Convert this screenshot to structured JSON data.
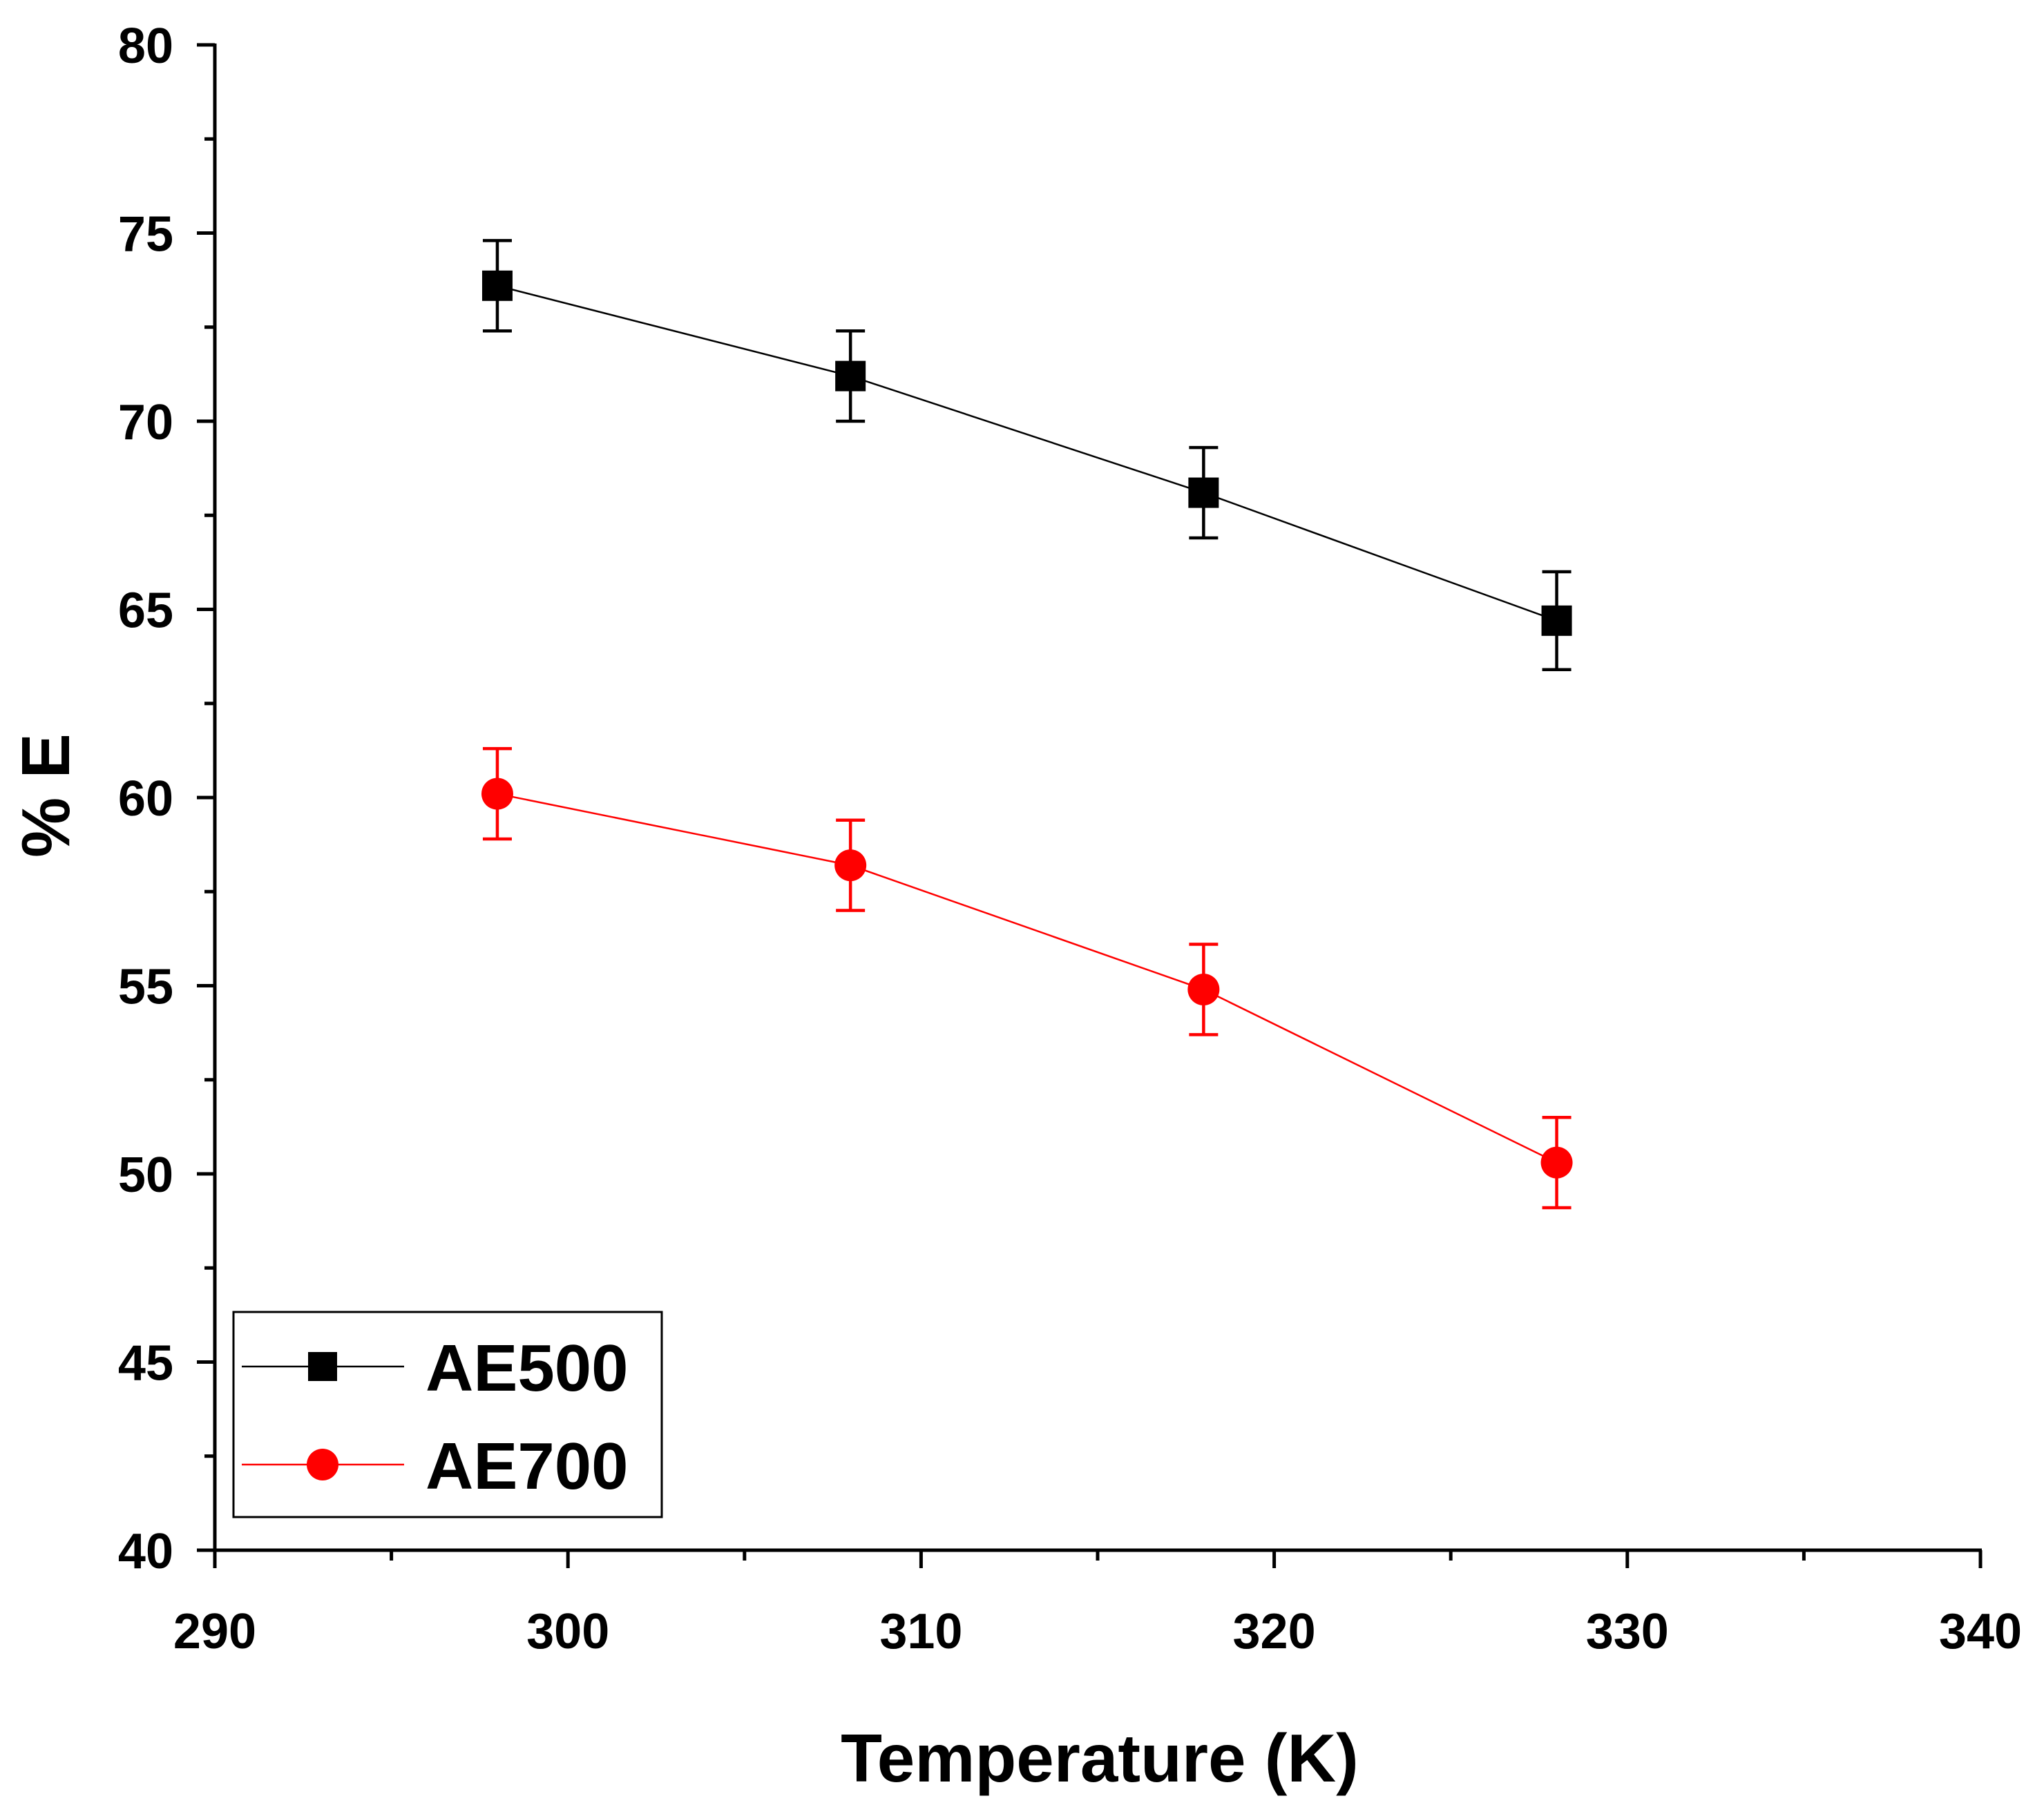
{
  "chart_data": {
    "type": "line",
    "title": "",
    "xlabel": "Temperature (K)",
    "ylabel": "% E",
    "xlim": [
      290,
      340
    ],
    "ylim": [
      40,
      80
    ],
    "x_major_ticks": [
      290,
      300,
      310,
      320,
      330,
      340
    ],
    "x_tick_labels": [
      "290",
      "300",
      "310",
      "320",
      "330",
      "340"
    ],
    "x_minor_ticks": [
      295,
      305,
      315,
      325,
      335
    ],
    "y_major_ticks": [
      40,
      45,
      50,
      55,
      60,
      65,
      70,
      75,
      80
    ],
    "y_tick_labels": [
      "40",
      "45",
      "50",
      "55",
      "60",
      "65",
      "70",
      "75",
      "80"
    ],
    "y_minor_ticks": [
      42.5,
      47.5,
      52.5,
      57.5,
      62.5,
      67.5,
      72.5,
      77.5
    ],
    "grid": false,
    "legend_position": "bottom-left",
    "series": [
      {
        "name": "AE500",
        "color": "#000000",
        "marker": "square",
        "x": [
          298,
          308,
          318,
          328
        ],
        "y": [
          73.6,
          71.2,
          68.1,
          64.7
        ],
        "error": [
          1.2,
          1.2,
          1.2,
          1.3
        ]
      },
      {
        "name": "AE700",
        "color": "#ff0000",
        "marker": "circle",
        "x": [
          298,
          308,
          318,
          328
        ],
        "y": [
          60.1,
          58.2,
          54.9,
          50.3
        ],
        "error": [
          1.2,
          1.2,
          1.2,
          1.2
        ]
      }
    ]
  }
}
